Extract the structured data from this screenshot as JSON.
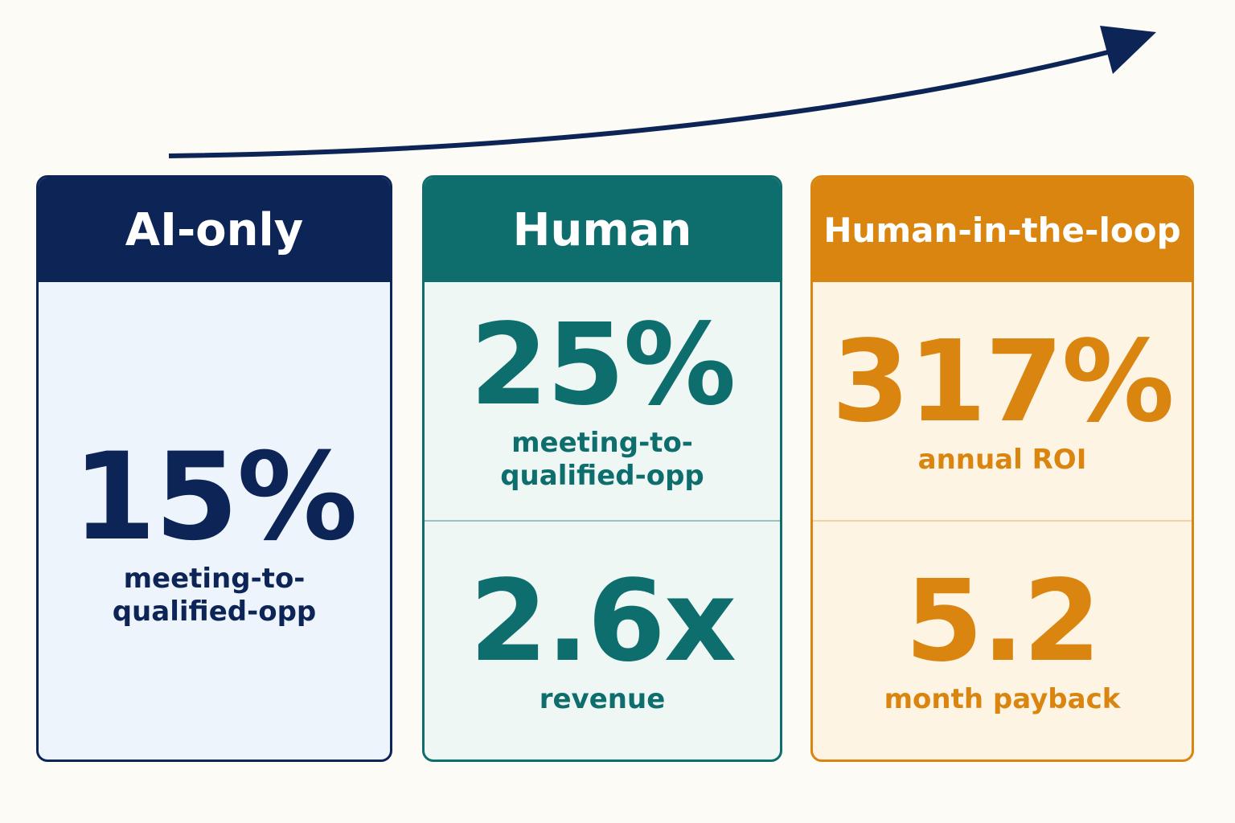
{
  "panels": [
    {
      "title": "AI-only",
      "metrics": [
        {
          "value": "15%",
          "label": "meeting-to-qualified-opp"
        }
      ]
    },
    {
      "title": "Human",
      "metrics": [
        {
          "value": "25%",
          "label": "meeting-to-qualified-opp"
        },
        {
          "value": "2.6x",
          "label": "revenue"
        }
      ]
    },
    {
      "title": "Human-in-the-loop",
      "metrics": [
        {
          "value": "317%",
          "label": "annual ROI"
        },
        {
          "value": "5.2",
          "label": "month payback"
        }
      ]
    }
  ]
}
